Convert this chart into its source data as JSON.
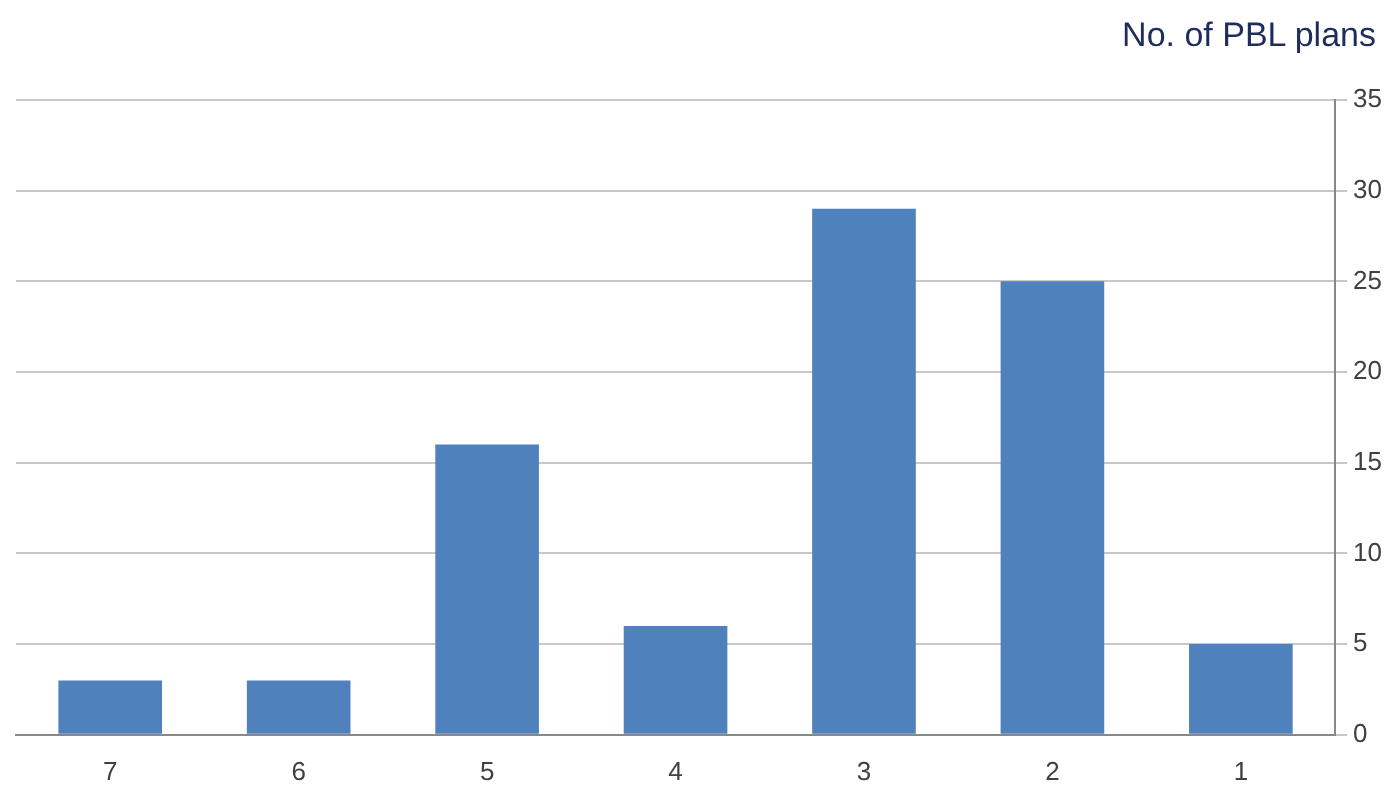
{
  "chart_data": {
    "type": "bar",
    "ylabel": "No. of PBL plans",
    "categories": [
      "7",
      "6",
      "5",
      "4",
      "3",
      "2",
      "1"
    ],
    "values": [
      3,
      3,
      16,
      6,
      29,
      25,
      5
    ],
    "color": "#4f81bd",
    "ylim": [
      0,
      35
    ],
    "yticks": [
      0,
      5,
      10,
      15,
      20,
      25,
      30,
      35
    ],
    "grid": "y",
    "legend": false
  }
}
